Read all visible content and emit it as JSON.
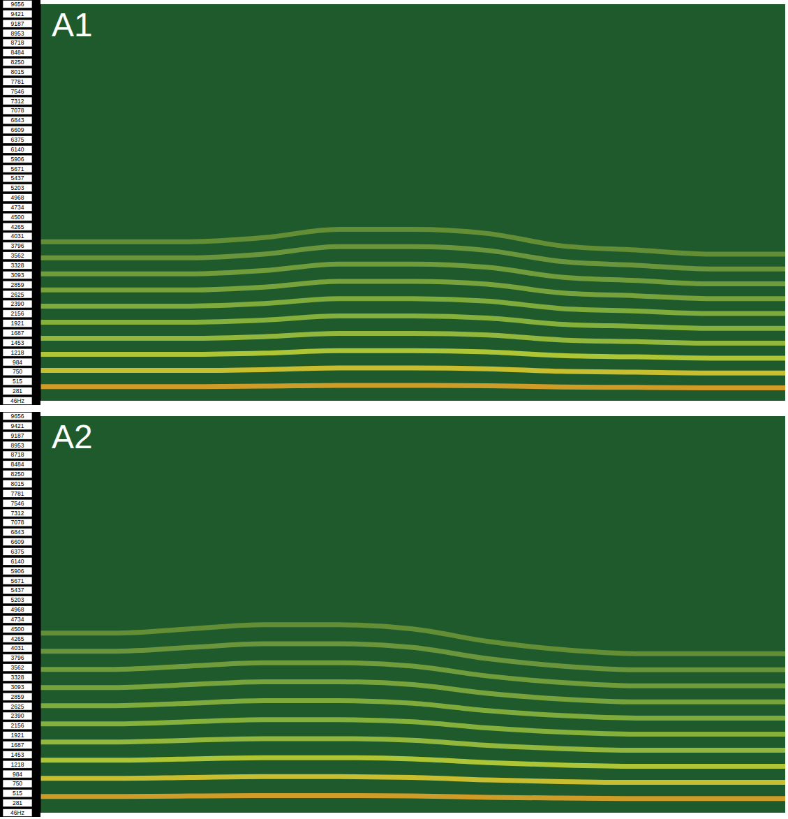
{
  "chart_data": [
    {
      "type": "line",
      "title": "A1",
      "tick_labels": "y",
      "grid": false,
      "x": [
        0,
        10,
        20,
        30,
        40,
        50,
        60,
        70,
        80,
        90,
        100
      ],
      "xlim": [
        0,
        100
      ],
      "ylim": [
        46,
        9656
      ],
      "yticks": [
        {
          "value": 46,
          "label": "46Hz"
        },
        281,
        515,
        750,
        984,
        1218,
        1453,
        1687,
        1921,
        2156,
        2390,
        2625,
        2859,
        3093,
        3328,
        3562,
        3796,
        4031,
        4265,
        4500,
        4734,
        4968,
        5203,
        5437,
        5671,
        5906,
        6140,
        6375,
        6609,
        6843,
        7078,
        7312,
        7546,
        7781,
        8015,
        8250,
        8484,
        8718,
        8953,
        9187,
        9421,
        9656
      ],
      "series": [
        {
          "color": "#f0a828",
          "values": [
            390,
            390,
            390,
            400,
            420,
            420,
            410,
            380,
            370,
            360,
            360
          ]
        },
        {
          "color": "#e8d030",
          "values": [
            780,
            780,
            780,
            800,
            840,
            840,
            820,
            760,
            740,
            720,
            720
          ]
        },
        {
          "color": "#c8d838",
          "values": [
            1170,
            1170,
            1170,
            1200,
            1260,
            1260,
            1230,
            1140,
            1110,
            1080,
            1080
          ]
        },
        {
          "color": "#a8c840",
          "values": [
            1560,
            1560,
            1560,
            1600,
            1680,
            1680,
            1640,
            1520,
            1480,
            1440,
            1440
          ]
        },
        {
          "color": "#98c040",
          "values": [
            1950,
            1950,
            1950,
            2000,
            2100,
            2100,
            2050,
            1900,
            1850,
            1800,
            1800
          ]
        },
        {
          "color": "#90b840",
          "values": [
            2340,
            2340,
            2340,
            2400,
            2520,
            2520,
            2460,
            2280,
            2220,
            2160,
            2160
          ]
        },
        {
          "color": "#88b040",
          "values": [
            2730,
            2730,
            2730,
            2800,
            2940,
            2940,
            2870,
            2660,
            2590,
            2520,
            2520
          ]
        },
        {
          "color": "#80a840",
          "values": [
            3120,
            3120,
            3120,
            3200,
            3360,
            3360,
            3280,
            3040,
            2960,
            2880,
            2880
          ]
        },
        {
          "color": "#78a040",
          "values": [
            3510,
            3510,
            3510,
            3600,
            3780,
            3780,
            3690,
            3420,
            3330,
            3240,
            3240
          ]
        },
        {
          "color": "#709838",
          "values": [
            3900,
            3900,
            3900,
            4000,
            4200,
            4200,
            4100,
            3800,
            3700,
            3600,
            3600
          ]
        }
      ]
    },
    {
      "type": "line",
      "title": "A2",
      "tick_labels": "y",
      "grid": false,
      "x": [
        0,
        10,
        20,
        30,
        40,
        50,
        60,
        70,
        80,
        90,
        100
      ],
      "xlim": [
        0,
        100
      ],
      "ylim": [
        46,
        9656
      ],
      "yticks": [
        {
          "value": 46,
          "label": "46Hz"
        },
        281,
        515,
        750,
        984,
        1218,
        1453,
        1687,
        1921,
        2156,
        2390,
        2625,
        2859,
        3093,
        3328,
        3562,
        3796,
        4031,
        4265,
        4500,
        4734,
        4968,
        5203,
        5437,
        5671,
        5906,
        6140,
        6375,
        6609,
        6843,
        7078,
        7312,
        7546,
        7781,
        8015,
        8250,
        8484,
        8718,
        8953,
        9187,
        9421,
        9656
      ],
      "series": [
        {
          "color": "#f0a828",
          "values": [
            440,
            440,
            450,
            460,
            460,
            450,
            420,
            400,
            390,
            390,
            390
          ]
        },
        {
          "color": "#e8d030",
          "values": [
            880,
            880,
            900,
            920,
            920,
            900,
            840,
            800,
            780,
            780,
            780
          ]
        },
        {
          "color": "#c8d838",
          "values": [
            1320,
            1320,
            1350,
            1380,
            1380,
            1350,
            1260,
            1200,
            1170,
            1170,
            1170
          ]
        },
        {
          "color": "#a8c840",
          "values": [
            1760,
            1760,
            1800,
            1840,
            1840,
            1800,
            1680,
            1600,
            1560,
            1560,
            1560
          ]
        },
        {
          "color": "#98c040",
          "values": [
            2200,
            2200,
            2250,
            2300,
            2300,
            2250,
            2100,
            2000,
            1950,
            1950,
            1950
          ]
        },
        {
          "color": "#90b840",
          "values": [
            2640,
            2640,
            2700,
            2760,
            2760,
            2700,
            2520,
            2400,
            2340,
            2340,
            2340
          ]
        },
        {
          "color": "#88b040",
          "values": [
            3080,
            3080,
            3150,
            3220,
            3220,
            3150,
            2940,
            2800,
            2730,
            2730,
            2730
          ]
        },
        {
          "color": "#80a840",
          "values": [
            3520,
            3520,
            3600,
            3680,
            3680,
            3600,
            3360,
            3200,
            3120,
            3120,
            3120
          ]
        },
        {
          "color": "#78a040",
          "values": [
            3960,
            3960,
            4050,
            4140,
            4140,
            4050,
            3780,
            3600,
            3510,
            3510,
            3510
          ]
        },
        {
          "color": "#709838",
          "values": [
            4400,
            4400,
            4500,
            4600,
            4600,
            4500,
            4200,
            4000,
            3900,
            3900,
            3900
          ]
        }
      ]
    }
  ]
}
